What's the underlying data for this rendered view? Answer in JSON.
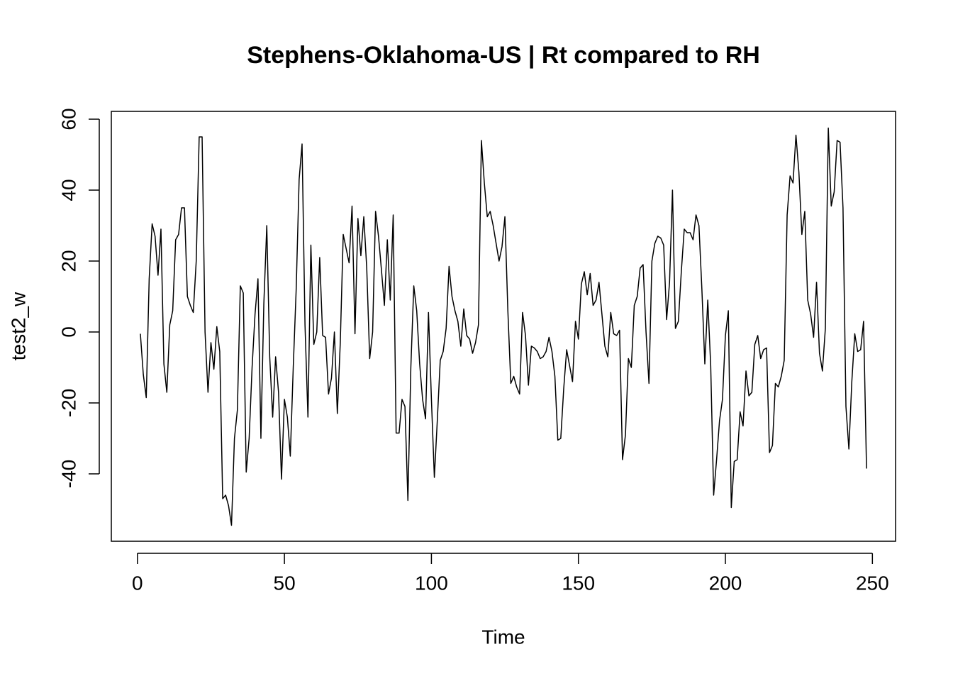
{
  "chart_data": {
    "type": "line",
    "title": "Stephens-Oklahoma-US | Rt compared to RH",
    "x_label": "Time",
    "y_label": "test2_w",
    "xlim": [
      -8.88,
      257.88
    ],
    "ylim": [
      -59,
      62.2
    ],
    "xticks": [
      0,
      50,
      100,
      150,
      200,
      250
    ],
    "yticks": [
      -40,
      -20,
      0,
      20,
      40,
      60
    ],
    "x": [
      1,
      2,
      3,
      4,
      5,
      6,
      7,
      8,
      9,
      10,
      11,
      12,
      13,
      14,
      15,
      16,
      17,
      18,
      19,
      20,
      21,
      22,
      23,
      24,
      25,
      26,
      27,
      28,
      29,
      30,
      31,
      32,
      33,
      34,
      35,
      36,
      37,
      38,
      39,
      40,
      41,
      42,
      43,
      44,
      45,
      46,
      47,
      48,
      49,
      50,
      51,
      52,
      53,
      54,
      55,
      56,
      57,
      58,
      59,
      60,
      61,
      62,
      63,
      64,
      65,
      66,
      67,
      68,
      69,
      70,
      71,
      72,
      73,
      74,
      75,
      76,
      77,
      78,
      79,
      80,
      81,
      82,
      83,
      84,
      85,
      86,
      87,
      88,
      89,
      90,
      91,
      92,
      93,
      94,
      95,
      96,
      97,
      98,
      99,
      100,
      101,
      102,
      103,
      104,
      105,
      106,
      107,
      108,
      109,
      110,
      111,
      112,
      113,
      114,
      115,
      116,
      117,
      118,
      119,
      120,
      121,
      122,
      123,
      124,
      125,
      126,
      127,
      128,
      129,
      130,
      131,
      132,
      133,
      134,
      135,
      136,
      137,
      138,
      139,
      140,
      141,
      142,
      143,
      144,
      145,
      146,
      147,
      148,
      149,
      150,
      151,
      152,
      153,
      154,
      155,
      156,
      157,
      158,
      159,
      160,
      161,
      162,
      163,
      164,
      165,
      166,
      167,
      168,
      169,
      170,
      171,
      172,
      173,
      174,
      175,
      176,
      177,
      178,
      179,
      180,
      181,
      182,
      183,
      184,
      185,
      186,
      187,
      188,
      189,
      190,
      191,
      192,
      193,
      194,
      195,
      196,
      197,
      198,
      199,
      200,
      201,
      202,
      203,
      204,
      205,
      206,
      207,
      208,
      209,
      210,
      211,
      212,
      213,
      214,
      215,
      216,
      217,
      218,
      219,
      220,
      221,
      222,
      223,
      224,
      225,
      226,
      227,
      228,
      229,
      230,
      231,
      232,
      233,
      234,
      235,
      236,
      237,
      238,
      239,
      240,
      241,
      242,
      243,
      244,
      245,
      246,
      247,
      248
    ],
    "series": [
      {
        "color": "#000000",
        "values": [
          -0.5,
          -12,
          -18.5,
          15,
          30.5,
          27,
          16,
          29,
          -9,
          -17,
          2,
          6,
          26,
          27.5,
          35,
          35,
          10,
          7.5,
          5.5,
          20,
          55,
          55,
          0,
          -17,
          -3,
          -10.5,
          1.5,
          -5.5,
          -47,
          -46,
          -49,
          -54.5,
          -30,
          -22,
          13,
          11,
          -39.5,
          -30,
          -10,
          5,
          15,
          -30,
          8,
          30,
          -7,
          -24,
          -7,
          -17,
          -41.5,
          -19,
          -24,
          -35,
          -10,
          12,
          43,
          53,
          2,
          -24,
          24.5,
          -3.5,
          0,
          21,
          -1,
          -1.5,
          -17.5,
          -13,
          0,
          -23,
          -3,
          27.5,
          23.5,
          19.5,
          35.5,
          -0.5,
          32,
          21.5,
          32.5,
          18,
          -7.5,
          0,
          34,
          27,
          17.5,
          7.5,
          26,
          9,
          33,
          -28.5,
          -28.5,
          -19,
          -21,
          -47.5,
          -10,
          13,
          6,
          -9,
          -19,
          -24.5,
          5.5,
          -19,
          -41,
          -25,
          -8,
          -5.5,
          1,
          18.5,
          10,
          6,
          3,
          -4,
          6.5,
          -1,
          -2,
          -6,
          -3,
          2,
          54,
          42,
          32.5,
          34,
          30,
          25,
          20,
          24,
          32.5,
          6,
          -14.5,
          -12.5,
          -15.5,
          -17.5,
          5.5,
          -1,
          -15,
          -4,
          -4.5,
          -5.5,
          -7.5,
          -7,
          -5.5,
          -1.5,
          -5.5,
          -12.5,
          -30.5,
          -30,
          -16,
          -5,
          -9.5,
          -14,
          3,
          -2,
          13.5,
          17,
          10.5,
          16.5,
          7.5,
          9,
          14,
          5,
          -4,
          -7,
          5.5,
          -0.5,
          -1,
          0.5,
          -36,
          -29,
          -7.5,
          -10,
          7.5,
          10,
          18,
          19,
          0,
          -14.5,
          20,
          25,
          27,
          26.5,
          24.5,
          3.5,
          14,
          40,
          1,
          3,
          17,
          29,
          28,
          28,
          26,
          33,
          30,
          12,
          -9,
          9,
          -9.5,
          -46,
          -36,
          -25,
          -19,
          -1,
          6,
          -49.5,
          -36.5,
          -36,
          -22.5,
          -26.5,
          -11,
          -18,
          -17,
          -3.5,
          -1,
          -7.5,
          -5,
          -4.5,
          -34,
          -32,
          -14.5,
          -15.5,
          -12.5,
          -8,
          33,
          44,
          42,
          55.5,
          45,
          27.5,
          34,
          9,
          5,
          -1.5,
          14,
          -6,
          -11,
          1,
          57.5,
          35.5,
          39.5,
          54,
          53.5,
          35,
          -21,
          -33,
          -14,
          -0.5,
          -5.5,
          -5,
          3,
          -38.5
        ]
      }
    ]
  }
}
